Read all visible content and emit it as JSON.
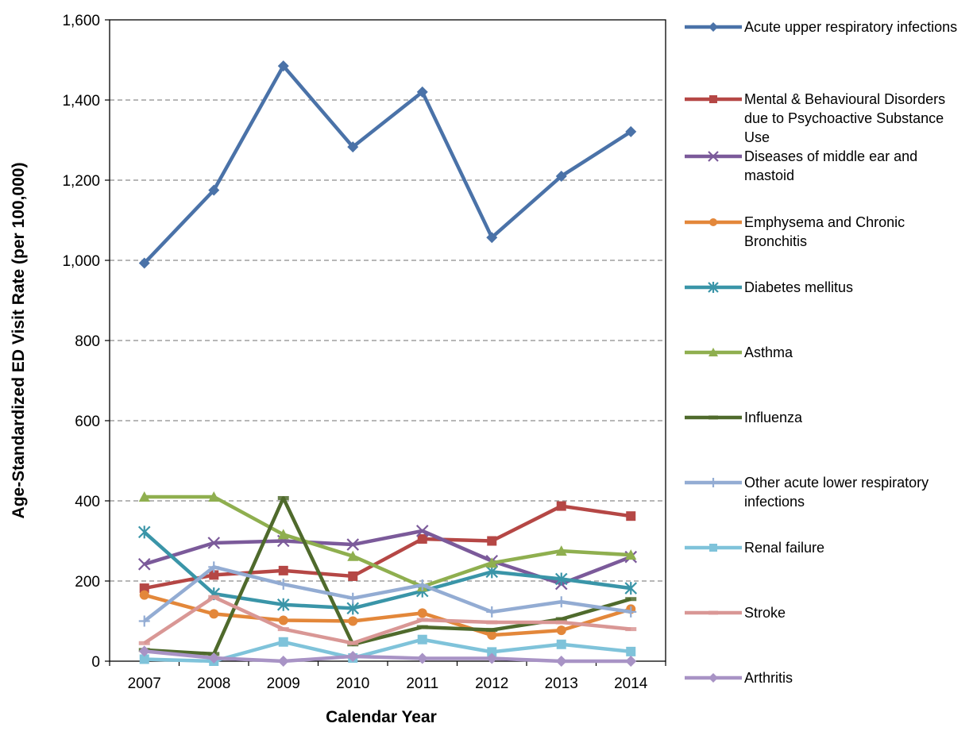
{
  "chart_data": {
    "type": "line",
    "title": "",
    "xlabel": "Calendar Year",
    "ylabel": "Age-Standardized ED Visit Rate (per 100,000)",
    "categories": [
      "2007",
      "2008",
      "2009",
      "2010",
      "2011",
      "2012",
      "2013",
      "2014"
    ],
    "ylim": [
      0,
      1600
    ],
    "yticks": [
      "0",
      "200",
      "400",
      "600",
      "800",
      "1,000",
      "1,200",
      "1,400",
      "1,600"
    ],
    "grid": "horizontal dashed",
    "legend_position": "right",
    "series": [
      {
        "name": "Acute upper respiratory infections",
        "color": "#4a72a8",
        "marker": "diamond",
        "values": [
          993,
          1175,
          1485,
          1283,
          1420,
          1057,
          1210,
          1321
        ]
      },
      {
        "name": "Mental & Behavioural Disorders due to Psychoactive Substance Use",
        "color": "#b54745",
        "marker": "square",
        "values": [
          182,
          215,
          226,
          212,
          305,
          300,
          387,
          362
        ]
      },
      {
        "name": "Diseases of middle ear and mastoid",
        "color": "#7b5a9a",
        "marker": "x",
        "values": [
          242,
          295,
          300,
          291,
          325,
          250,
          193,
          260
        ]
      },
      {
        "name": "Emphysema and Chronic Bronchitis",
        "color": "#e3873a",
        "marker": "circle",
        "values": [
          165,
          118,
          102,
          100,
          120,
          65,
          77,
          130
        ]
      },
      {
        "name": "Diabetes mellitus",
        "color": "#3a95a8",
        "marker": "star",
        "values": [
          322,
          168,
          141,
          132,
          175,
          223,
          205,
          182
        ]
      },
      {
        "name": "Asthma",
        "color": "#8faf4f",
        "marker": "triangle",
        "values": [
          410,
          410,
          316,
          262,
          186,
          245,
          275,
          265
        ]
      },
      {
        "name": "Influenza",
        "color": "#4f6a2c",
        "marker": "dash",
        "values": [
          28,
          18,
          407,
          42,
          85,
          78,
          105,
          155
        ]
      },
      {
        "name": "Other acute lower respiratory infections",
        "color": "#93acd3",
        "marker": "plus",
        "values": [
          100,
          235,
          192,
          157,
          190,
          123,
          148,
          123
        ]
      },
      {
        "name": "Renal failure",
        "color": "#7fc3da",
        "marker": "square",
        "values": [
          5,
          0,
          48,
          8,
          54,
          23,
          42,
          24
        ]
      },
      {
        "name": "Stroke",
        "color": "#d99795",
        "marker": "dash",
        "values": [
          45,
          160,
          80,
          45,
          103,
          97,
          97,
          80
        ]
      },
      {
        "name": "Arthritis",
        "color": "#a893c5",
        "marker": "diamond",
        "values": [
          25,
          8,
          0,
          12,
          7,
          7,
          0,
          0
        ]
      }
    ]
  }
}
